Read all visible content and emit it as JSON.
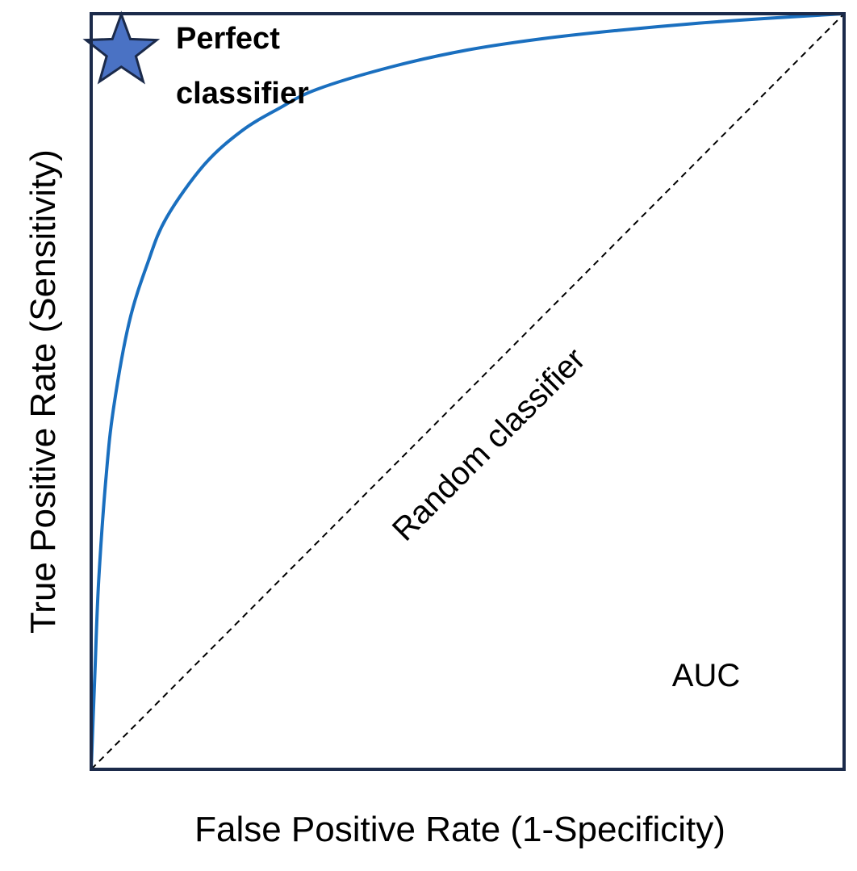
{
  "chart_data": {
    "type": "line",
    "title": "",
    "xlabel": "False Positive Rate (1-Specificity)",
    "ylabel": "True Positive Rate (Sensitivity)",
    "xlim": [
      0,
      1
    ],
    "ylim": [
      0,
      1
    ],
    "grid": false,
    "series": [
      {
        "name": "",
        "style": "solid",
        "color": "#1a6fbf",
        "x": [
          0,
          0.005,
          0.01,
          0.02,
          0.03,
          0.05,
          0.075,
          0.1,
          0.15,
          0.2,
          0.25,
          0.3,
          0.4,
          0.5,
          0.6,
          0.7,
          0.8,
          0.9,
          1.0
        ],
        "y": [
          0,
          0.13,
          0.25,
          0.39,
          0.48,
          0.59,
          0.67,
          0.73,
          0.8,
          0.845,
          0.875,
          0.9,
          0.93,
          0.952,
          0.967,
          0.978,
          0.987,
          0.994,
          1.0
        ]
      },
      {
        "name": "Random classifier",
        "style": "dashed",
        "color": "#000000",
        "x": [
          0,
          1
        ],
        "y": [
          0,
          1
        ]
      }
    ],
    "points": [
      {
        "name": "Perfect classifier",
        "x": 0.04,
        "y": 0.95,
        "marker": "star",
        "color": "#4a72c4"
      }
    ],
    "annotations": {
      "perfect_line1": "Perfect",
      "perfect_line2": "classifier",
      "random": "Random classifier",
      "auc": "AUC"
    },
    "colors": {
      "frame": "#1b2a4a",
      "star_fill": "#4a72c4",
      "star_stroke": "#1b2a4a"
    }
  }
}
